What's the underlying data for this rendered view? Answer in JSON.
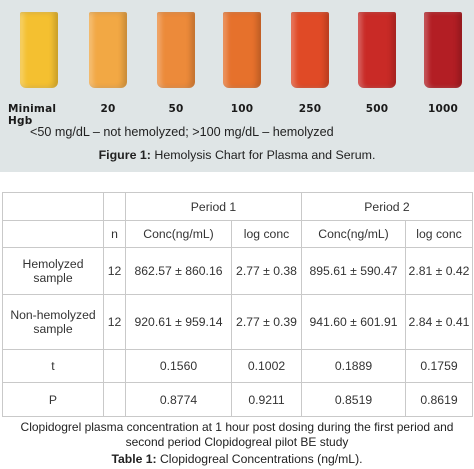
{
  "figure": {
    "tubes": [
      {
        "label": "Minimal Hgb",
        "color": "#f4c030"
      },
      {
        "label": "20",
        "color": "#f2a844"
      },
      {
        "label": "50",
        "color": "#ec8a3a"
      },
      {
        "label": "100",
        "color": "#e6712c"
      },
      {
        "label": "250",
        "color": "#e04a26"
      },
      {
        "label": "500",
        "color": "#c92a26"
      },
      {
        "label": "1000",
        "color": "#b31e24"
      }
    ],
    "note": "<50 mg/dL – not hemolyzed; >100 mg/dL – hemolyzed",
    "caption_label": "Figure 1:",
    "caption_text": " Hemolysis Chart for Plasma and Serum."
  },
  "table": {
    "period1": "Period 1",
    "period2": "Period 2",
    "headers": {
      "n": "n",
      "conc1": "Conc(ng/mL)",
      "log1": "log conc",
      "conc2": "Conc(ng/mL)",
      "log2": "log conc"
    },
    "rows": [
      {
        "label": "Hemolyzed sample",
        "n": "12",
        "conc1": "862.57 ± 860.16",
        "log1": "2.77 ± 0.38",
        "conc2": "895.61 ± 590.47",
        "log2": "2.81 ± 0.42"
      },
      {
        "label": "Non-hemolyzed sample",
        "n": "12",
        "conc1": "920.61 ± 959.14",
        "log1": "2.77 ± 0.39",
        "conc2": "941.60 ± 601.91",
        "log2": "2.84 ± 0.41"
      },
      {
        "label": "t",
        "n": "",
        "conc1": "0.1560",
        "log1": "0.1002",
        "conc2": "0.1889",
        "log2": "0.1759"
      },
      {
        "label": "P",
        "n": "",
        "conc1": "0.8774",
        "log1": "0.9211",
        "conc2": "0.8519",
        "log2": "0.8619"
      }
    ],
    "note": "Clopidogrel plasma concentration at 1 hour post dosing during the first period and second period Clopidogreal pilot BE study",
    "caption_label": "Table 1:",
    "caption_text": " Clopidogreal Concentrations (ng/mL)."
  }
}
